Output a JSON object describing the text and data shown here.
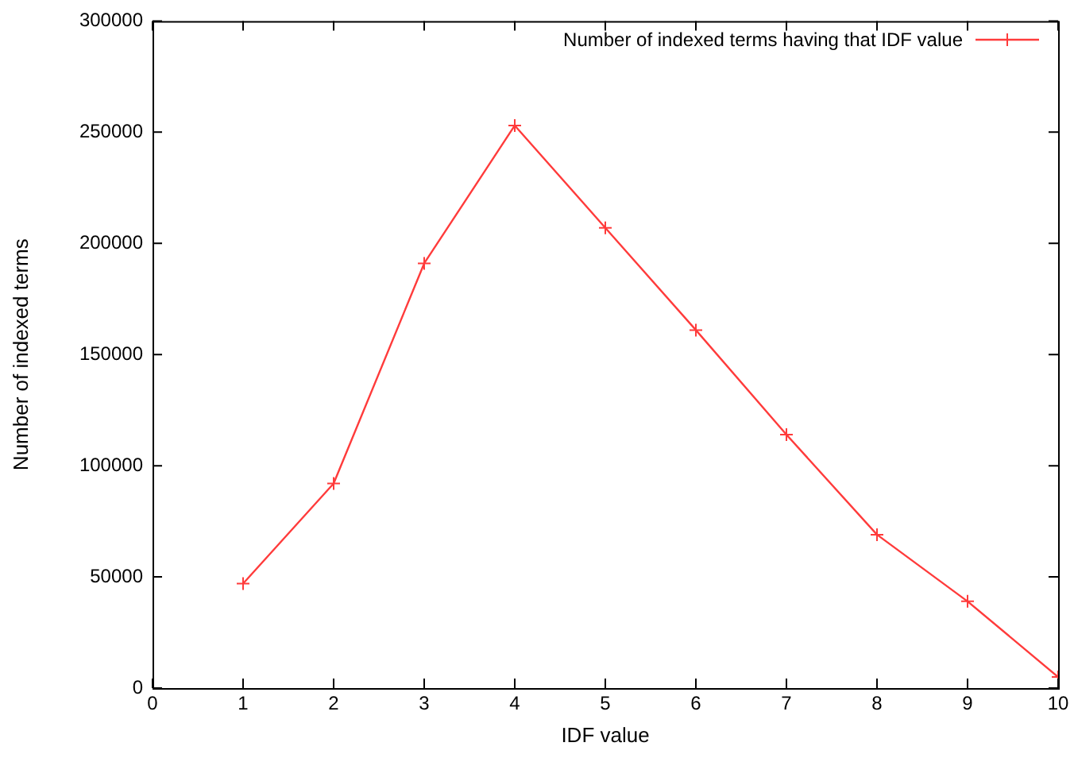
{
  "chart_data": {
    "type": "line",
    "xlabel": "IDF value",
    "ylabel": "Number of indexed terms",
    "x": [
      1,
      2,
      3,
      4,
      5,
      6,
      7,
      8,
      9,
      10
    ],
    "series": [
      {
        "name": "Number of indexed terms having that IDF value",
        "color": "#ff3b3b",
        "values": [
          47000,
          92000,
          191000,
          253000,
          207000,
          161000,
          114000,
          69000,
          39000,
          5000
        ]
      }
    ],
    "xlim": [
      0,
      10
    ],
    "xticks": [
      0,
      1,
      2,
      3,
      4,
      5,
      6,
      7,
      8,
      9,
      10
    ],
    "ylim": [
      0,
      300000
    ],
    "yticks": [
      0,
      50000,
      100000,
      150000,
      200000,
      250000,
      300000
    ],
    "grid": false,
    "legend": "top right",
    "marker": "cross",
    "line_style": "solid"
  }
}
